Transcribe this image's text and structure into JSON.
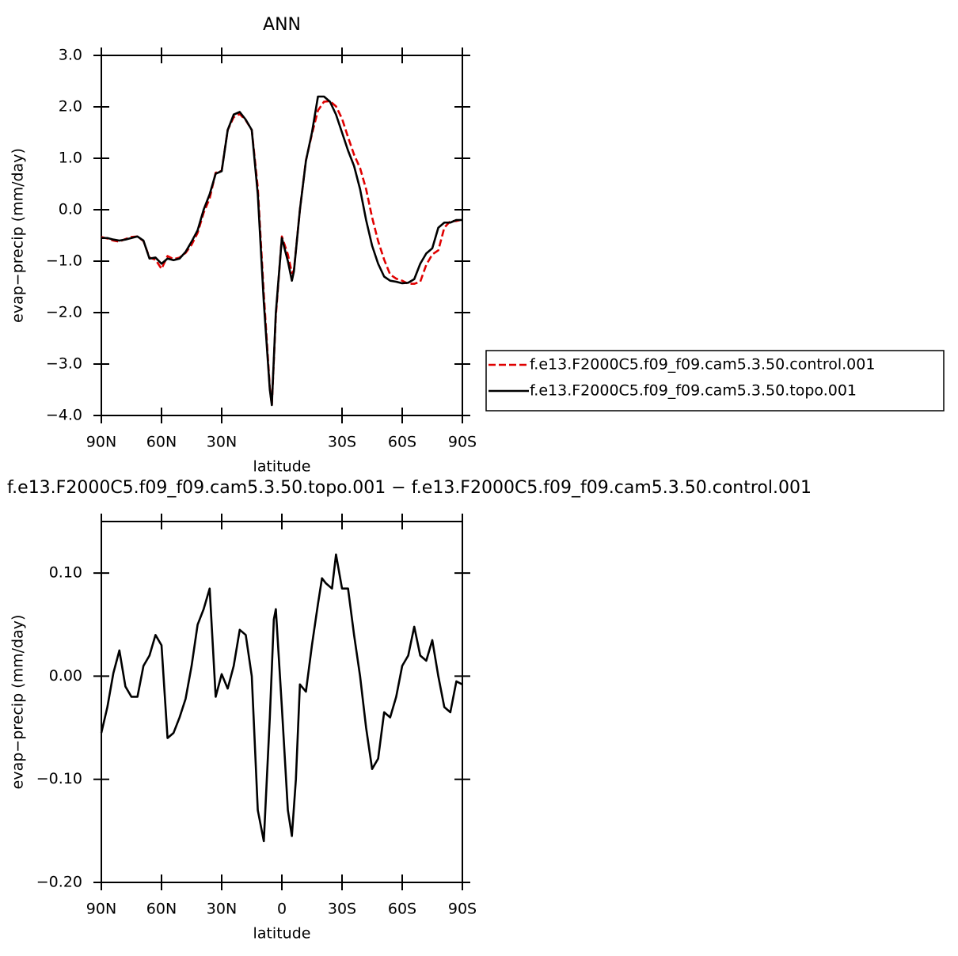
{
  "chart_data": [
    {
      "type": "line",
      "title": "ANN",
      "xlabel": "latitude",
      "ylabel": "evap−precip (mm/day)",
      "x": [
        90,
        87,
        84,
        81,
        78,
        75,
        72,
        69,
        66,
        63,
        60,
        57,
        54,
        51,
        48,
        45,
        42,
        39,
        36,
        33,
        30,
        27,
        24,
        21,
        18,
        15,
        12,
        9,
        6,
        5,
        3,
        0,
        -3,
        -5,
        -6,
        -9,
        -12,
        -15,
        -18,
        -21,
        -24,
        -27,
        -30,
        -33,
        -36,
        -39,
        -42,
        -45,
        -48,
        -51,
        -54,
        -57,
        -60,
        -63,
        -66,
        -69,
        -72,
        -75,
        -78,
        -81,
        -84,
        -87,
        -90
      ],
      "series": [
        {
          "name": "f.e13.F2000C5.f09_f09.cam5.3.50.control.001",
          "color": "#e00000",
          "style": "dashed",
          "values": [
            -0.53,
            -0.56,
            -0.6,
            -0.62,
            -0.57,
            -0.53,
            -0.52,
            -0.61,
            -0.93,
            -0.97,
            -1.15,
            -0.9,
            -0.96,
            -0.93,
            -0.84,
            -0.68,
            -0.45,
            -0.06,
            0.22,
            0.72,
            0.76,
            1.55,
            1.8,
            1.86,
            1.74,
            1.55,
            0.43,
            -1.64,
            -3.46,
            -3.8,
            -2.07,
            -0.52,
            -0.87,
            -1.23,
            -1.18,
            0.0,
            0.96,
            1.47,
            1.93,
            2.1,
            2.11,
            2.01,
            1.77,
            1.41,
            1.07,
            0.81,
            0.4,
            -0.15,
            -0.61,
            -0.97,
            -1.26,
            -1.34,
            -1.38,
            -1.44,
            -1.44,
            -1.4,
            -1.07,
            -0.87,
            -0.79,
            -0.35,
            -0.22,
            -0.22,
            -0.19
          ]
        },
        {
          "name": "f.e13.F2000C5.f09_f09.cam5.3.50.topo.001",
          "color": "#000000",
          "style": "solid",
          "values": [
            -0.55,
            -0.55,
            -0.58,
            -0.6,
            -0.58,
            -0.55,
            -0.52,
            -0.6,
            -0.95,
            -0.93,
            -1.05,
            -0.95,
            -0.98,
            -0.95,
            -0.82,
            -0.62,
            -0.4,
            0.0,
            0.3,
            0.7,
            0.75,
            1.55,
            1.85,
            1.9,
            1.75,
            1.55,
            0.3,
            -1.8,
            -3.5,
            -3.8,
            -2.0,
            -0.55,
            -1.0,
            -1.38,
            -1.2,
            0.0,
            0.95,
            1.5,
            2.2,
            2.2,
            2.1,
            1.85,
            1.5,
            1.15,
            0.85,
            0.4,
            -0.2,
            -0.7,
            -1.05,
            -1.3,
            -1.38,
            -1.4,
            -1.43,
            -1.42,
            -1.35,
            -1.05,
            -0.85,
            -0.75,
            -0.35,
            -0.25,
            -0.25,
            -0.2,
            -0.2
          ]
        }
      ],
      "xlim": [
        90,
        -90
      ],
      "xticks": [
        {
          "value": 90,
          "label": "90N"
        },
        {
          "value": 60,
          "label": "60N"
        },
        {
          "value": 30,
          "label": "30N"
        },
        {
          "value": -30,
          "label": "30S"
        },
        {
          "value": -60,
          "label": "60S"
        },
        {
          "value": -90,
          "label": "90S"
        }
      ],
      "ylim": [
        -4,
        3
      ],
      "yticks": [
        {
          "value": 3,
          "label": "3.0"
        },
        {
          "value": 2,
          "label": "2.0"
        },
        {
          "value": 1,
          "label": "1.0"
        },
        {
          "value": 0,
          "label": "0.0"
        },
        {
          "value": -1,
          "label": "−1.0"
        },
        {
          "value": -2,
          "label": "−2.0"
        },
        {
          "value": -3,
          "label": "−3.0"
        },
        {
          "value": -4,
          "label": "−4.0"
        }
      ],
      "legend": "right"
    },
    {
      "type": "line",
      "title": "f.e13.F2000C5.f09_f09.cam5.3.50.topo.001 − f.e13.F2000C5.f09_f09.cam5.3.50.control.001",
      "xlabel": "latitude",
      "ylabel": "evap−precip (mm/day)",
      "x": [
        90,
        87,
        84,
        81,
        78,
        75,
        72,
        69,
        66,
        63,
        60,
        57,
        54,
        51,
        48,
        45,
        42,
        39,
        36,
        33,
        30,
        27,
        24,
        21,
        18,
        15,
        12,
        9,
        6,
        4,
        3,
        0,
        -3,
        -5,
        -7,
        -9,
        -12,
        -15,
        -18,
        -20,
        -22,
        -25,
        -27,
        -30,
        -33,
        -36,
        -39,
        -42,
        -45,
        -48,
        -51,
        -54,
        -57,
        -60,
        -63,
        -66,
        -69,
        -72,
        -75,
        -78,
        -81,
        -84,
        -87,
        -90
      ],
      "values": [
        -0.055,
        -0.03,
        0.003,
        0.025,
        -0.01,
        -0.02,
        -0.02,
        0.01,
        0.02,
        0.04,
        0.03,
        -0.06,
        -0.055,
        -0.04,
        -0.022,
        0.01,
        0.05,
        0.065,
        0.085,
        -0.02,
        0.002,
        -0.012,
        0.01,
        0.045,
        0.04,
        0.0,
        -0.13,
        -0.16,
        -0.04,
        0.055,
        0.065,
        -0.03,
        -0.13,
        -0.155,
        -0.1,
        -0.008,
        -0.015,
        0.03,
        0.07,
        0.095,
        0.09,
        0.085,
        0.118,
        0.085,
        0.085,
        0.04,
        0.0,
        -0.05,
        -0.09,
        -0.08,
        -0.035,
        -0.04,
        -0.02,
        0.01,
        0.02,
        0.048,
        0.02,
        0.015,
        0.035,
        0.0,
        -0.03,
        -0.035,
        -0.005,
        -0.008
      ],
      "color": "#000000",
      "xlim": [
        90,
        -90
      ],
      "xticks": [
        {
          "value": 90,
          "label": "90N"
        },
        {
          "value": 60,
          "label": "60N"
        },
        {
          "value": 30,
          "label": "30N"
        },
        0,
        {
          "value": -30,
          "label": "30S"
        },
        {
          "value": -60,
          "label": "60S"
        },
        {
          "value": -90,
          "label": "90S"
        }
      ],
      "ylim": [
        -0.2,
        0.15
      ],
      "yticks": [
        {
          "value": 0.1,
          "label": "0.10"
        },
        {
          "value": 0,
          "label": "0.00"
        },
        {
          "value": -0.1,
          "label": "−0.10"
        },
        {
          "value": -0.2,
          "label": "−0.20"
        }
      ]
    }
  ]
}
